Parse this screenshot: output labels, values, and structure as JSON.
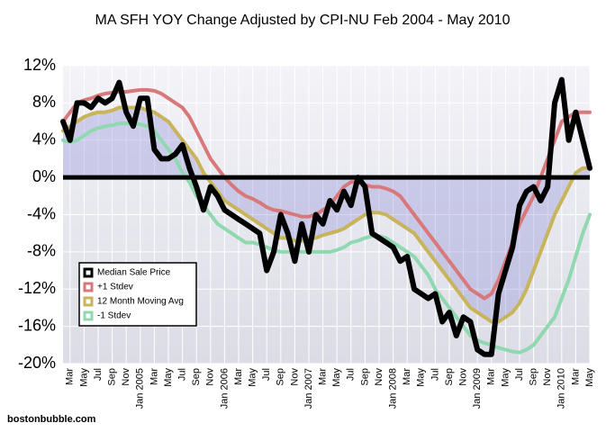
{
  "chart_data": {
    "type": "line",
    "title": "MA SFH YOY Change Adjusted by CPI-NU Feb 2004 - May 2010",
    "footer": "bostonbubble.com",
    "categories": [
      null,
      "Mar",
      null,
      "May",
      null,
      "Jul",
      null,
      "Sep",
      null,
      "Nov",
      null,
      "Jan 2005",
      null,
      "Mar",
      null,
      "May",
      null,
      "Jul",
      null,
      "Sep",
      null,
      "Nov",
      null,
      "Jan 2006",
      null,
      "Mar",
      null,
      "May",
      null,
      "Jul",
      null,
      "Sep",
      null,
      "Nov",
      null,
      "Jan 2007",
      null,
      "Mar",
      null,
      "May",
      null,
      "Jul",
      null,
      "Sep",
      null,
      "Nov",
      null,
      "Jan 2008",
      null,
      "Mar",
      null,
      "May",
      null,
      "Jul",
      null,
      "Sep",
      null,
      "Nov",
      null,
      "Jan 2009",
      null,
      "Mar",
      null,
      "May",
      null,
      "Jul",
      null,
      "Sep",
      null,
      "Nov",
      null,
      "Jan 2010",
      null,
      "Mar",
      null,
      "May"
    ],
    "series": [
      {
        "name": "Median Sale Price",
        "color": "#000000",
        "values": [
          6,
          4,
          8,
          8,
          7.5,
          8.5,
          8,
          8.5,
          10.2,
          7,
          5.5,
          8.5,
          8.5,
          3,
          2,
          2,
          2.5,
          3.5,
          1,
          -1,
          -3.5,
          -1,
          -2,
          -3.5,
          -4,
          -4.5,
          -5,
          -5.5,
          -6,
          -10,
          -8,
          -4,
          -6,
          -9,
          -5,
          -8,
          -4,
          -5,
          -2.5,
          -3.5,
          -1.5,
          -3,
          0,
          -1,
          -6,
          -6.5,
          -7,
          -7.5,
          -9,
          -8.5,
          -12,
          -12.5,
          -13,
          -12.5,
          -15.5,
          -14.5,
          -17,
          -15,
          -15.5,
          -18.5,
          -19,
          -19,
          -12.5,
          -10,
          -7.5,
          -3,
          -1.5,
          -1,
          -2.5,
          -1,
          8,
          10.5,
          4,
          7,
          4,
          1
        ]
      },
      {
        "name": "+1 Stdev",
        "color": "#d9787a",
        "values": [
          6,
          7,
          8,
          8.3,
          8.5,
          8.8,
          9,
          9.1,
          9.2,
          9.2,
          9.3,
          9.4,
          9.4,
          9.3,
          9,
          8.5,
          8,
          7.5,
          6.5,
          5,
          3.5,
          2,
          1,
          0,
          -0.8,
          -1.5,
          -2,
          -2.3,
          -2.7,
          -3.2,
          -3.5,
          -3.6,
          -3.8,
          -4,
          -4.2,
          -4.2,
          -4,
          -3.5,
          -3,
          -2,
          -1,
          -0.5,
          -0.5,
          -0.8,
          -1,
          -1,
          -1.2,
          -1.5,
          -2,
          -3,
          -4,
          -5,
          -6,
          -7,
          -8,
          -9,
          -10,
          -11,
          -12,
          -12.5,
          -13,
          -12.5,
          -11,
          -9,
          -7,
          -5,
          -3.5,
          -2,
          0,
          2,
          4,
          6,
          6.5,
          7,
          7,
          7
        ]
      },
      {
        "name": "12 Month Moving Avg",
        "color": "#c8b45a",
        "values": [
          5,
          5.5,
          6,
          6.5,
          6.8,
          7,
          7,
          7.2,
          7.5,
          7.5,
          7.5,
          7.5,
          7.2,
          7,
          6.5,
          6,
          5,
          4,
          3,
          2,
          0.5,
          -0.5,
          -1.5,
          -2.5,
          -3,
          -3.5,
          -4,
          -4.5,
          -5,
          -5.5,
          -6,
          -6.5,
          -6.5,
          -6.8,
          -6.8,
          -6.5,
          -6.5,
          -6.2,
          -6,
          -5.8,
          -5.5,
          -5,
          -4.5,
          -4,
          -3.8,
          -3.8,
          -4,
          -4.5,
          -5,
          -5.5,
          -6,
          -7,
          -8,
          -9,
          -10,
          -11,
          -12,
          -13,
          -14,
          -14.5,
          -15,
          -15.5,
          -15.5,
          -15,
          -14.5,
          -13.5,
          -12,
          -10,
          -8,
          -6,
          -4,
          -2.5,
          -1,
          0.5,
          1,
          1
        ]
      },
      {
        "name": "-1 Stdev",
        "color": "#8fd8b0",
        "values": [
          4,
          3.8,
          4,
          4.5,
          5,
          5.3,
          5.5,
          5.6,
          5.8,
          5.8,
          5.8,
          5.7,
          5.5,
          5,
          4,
          3,
          2,
          0.5,
          -0.5,
          -2,
          -3,
          -4,
          -5,
          -5.5,
          -6,
          -6.5,
          -7,
          -7,
          -7.2,
          -7.5,
          -7.8,
          -8,
          -8,
          -8,
          -8,
          -8,
          -8,
          -8,
          -8,
          -7.8,
          -7.5,
          -7,
          -6.8,
          -6.5,
          -6.3,
          -6.3,
          -6.5,
          -7,
          -7.5,
          -8,
          -8.5,
          -9.5,
          -10.5,
          -12,
          -13,
          -14,
          -15,
          -16,
          -17,
          -17.5,
          -17.8,
          -18,
          -18.3,
          -18.5,
          -18.7,
          -18.8,
          -18.5,
          -18,
          -17,
          -16,
          -15,
          -13,
          -11,
          -8.5,
          -6,
          -4
        ]
      }
    ],
    "ylim": [
      -20,
      12
    ],
    "yticks": [
      {
        "value": -20,
        "label": "-20%"
      },
      {
        "value": -16,
        "label": "-16%"
      },
      {
        "value": -12,
        "label": "-12%"
      },
      {
        "value": -8,
        "label": "-8%"
      },
      {
        "value": -4,
        "label": "-4%"
      },
      {
        "value": 0,
        "label": "0%"
      },
      {
        "value": 4,
        "label": "4%"
      },
      {
        "value": 8,
        "label": "8%"
      },
      {
        "value": 12,
        "label": "12%"
      }
    ],
    "grid": true,
    "legend": "lower-left"
  }
}
